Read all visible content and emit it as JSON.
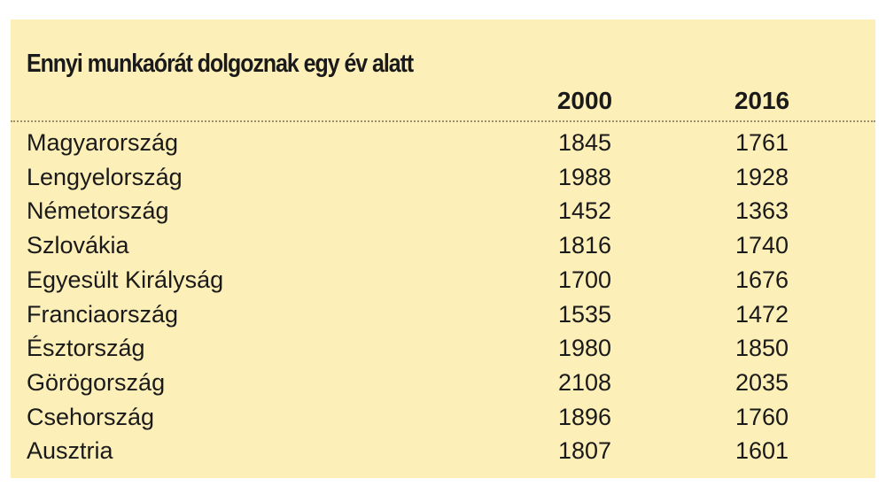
{
  "table": {
    "title": "Ennyi munkaórát dolgoznak egy év alatt",
    "columns": [
      "2000",
      "2016"
    ],
    "rows": [
      [
        "Magyarország",
        1845,
        1761
      ],
      [
        "Lengyelország",
        1988,
        1928
      ],
      [
        "Németország",
        1452,
        1363
      ],
      [
        "Szlovákia",
        1816,
        1740
      ],
      [
        "Egyesült Királyság",
        1700,
        1676
      ],
      [
        "Franciaország",
        1535,
        1472
      ],
      [
        "Észtország",
        1980,
        1850
      ],
      [
        "Görögország",
        2108,
        2035
      ],
      [
        "Csehország",
        1896,
        1760
      ],
      [
        "Ausztria",
        1807,
        1601
      ]
    ]
  }
}
